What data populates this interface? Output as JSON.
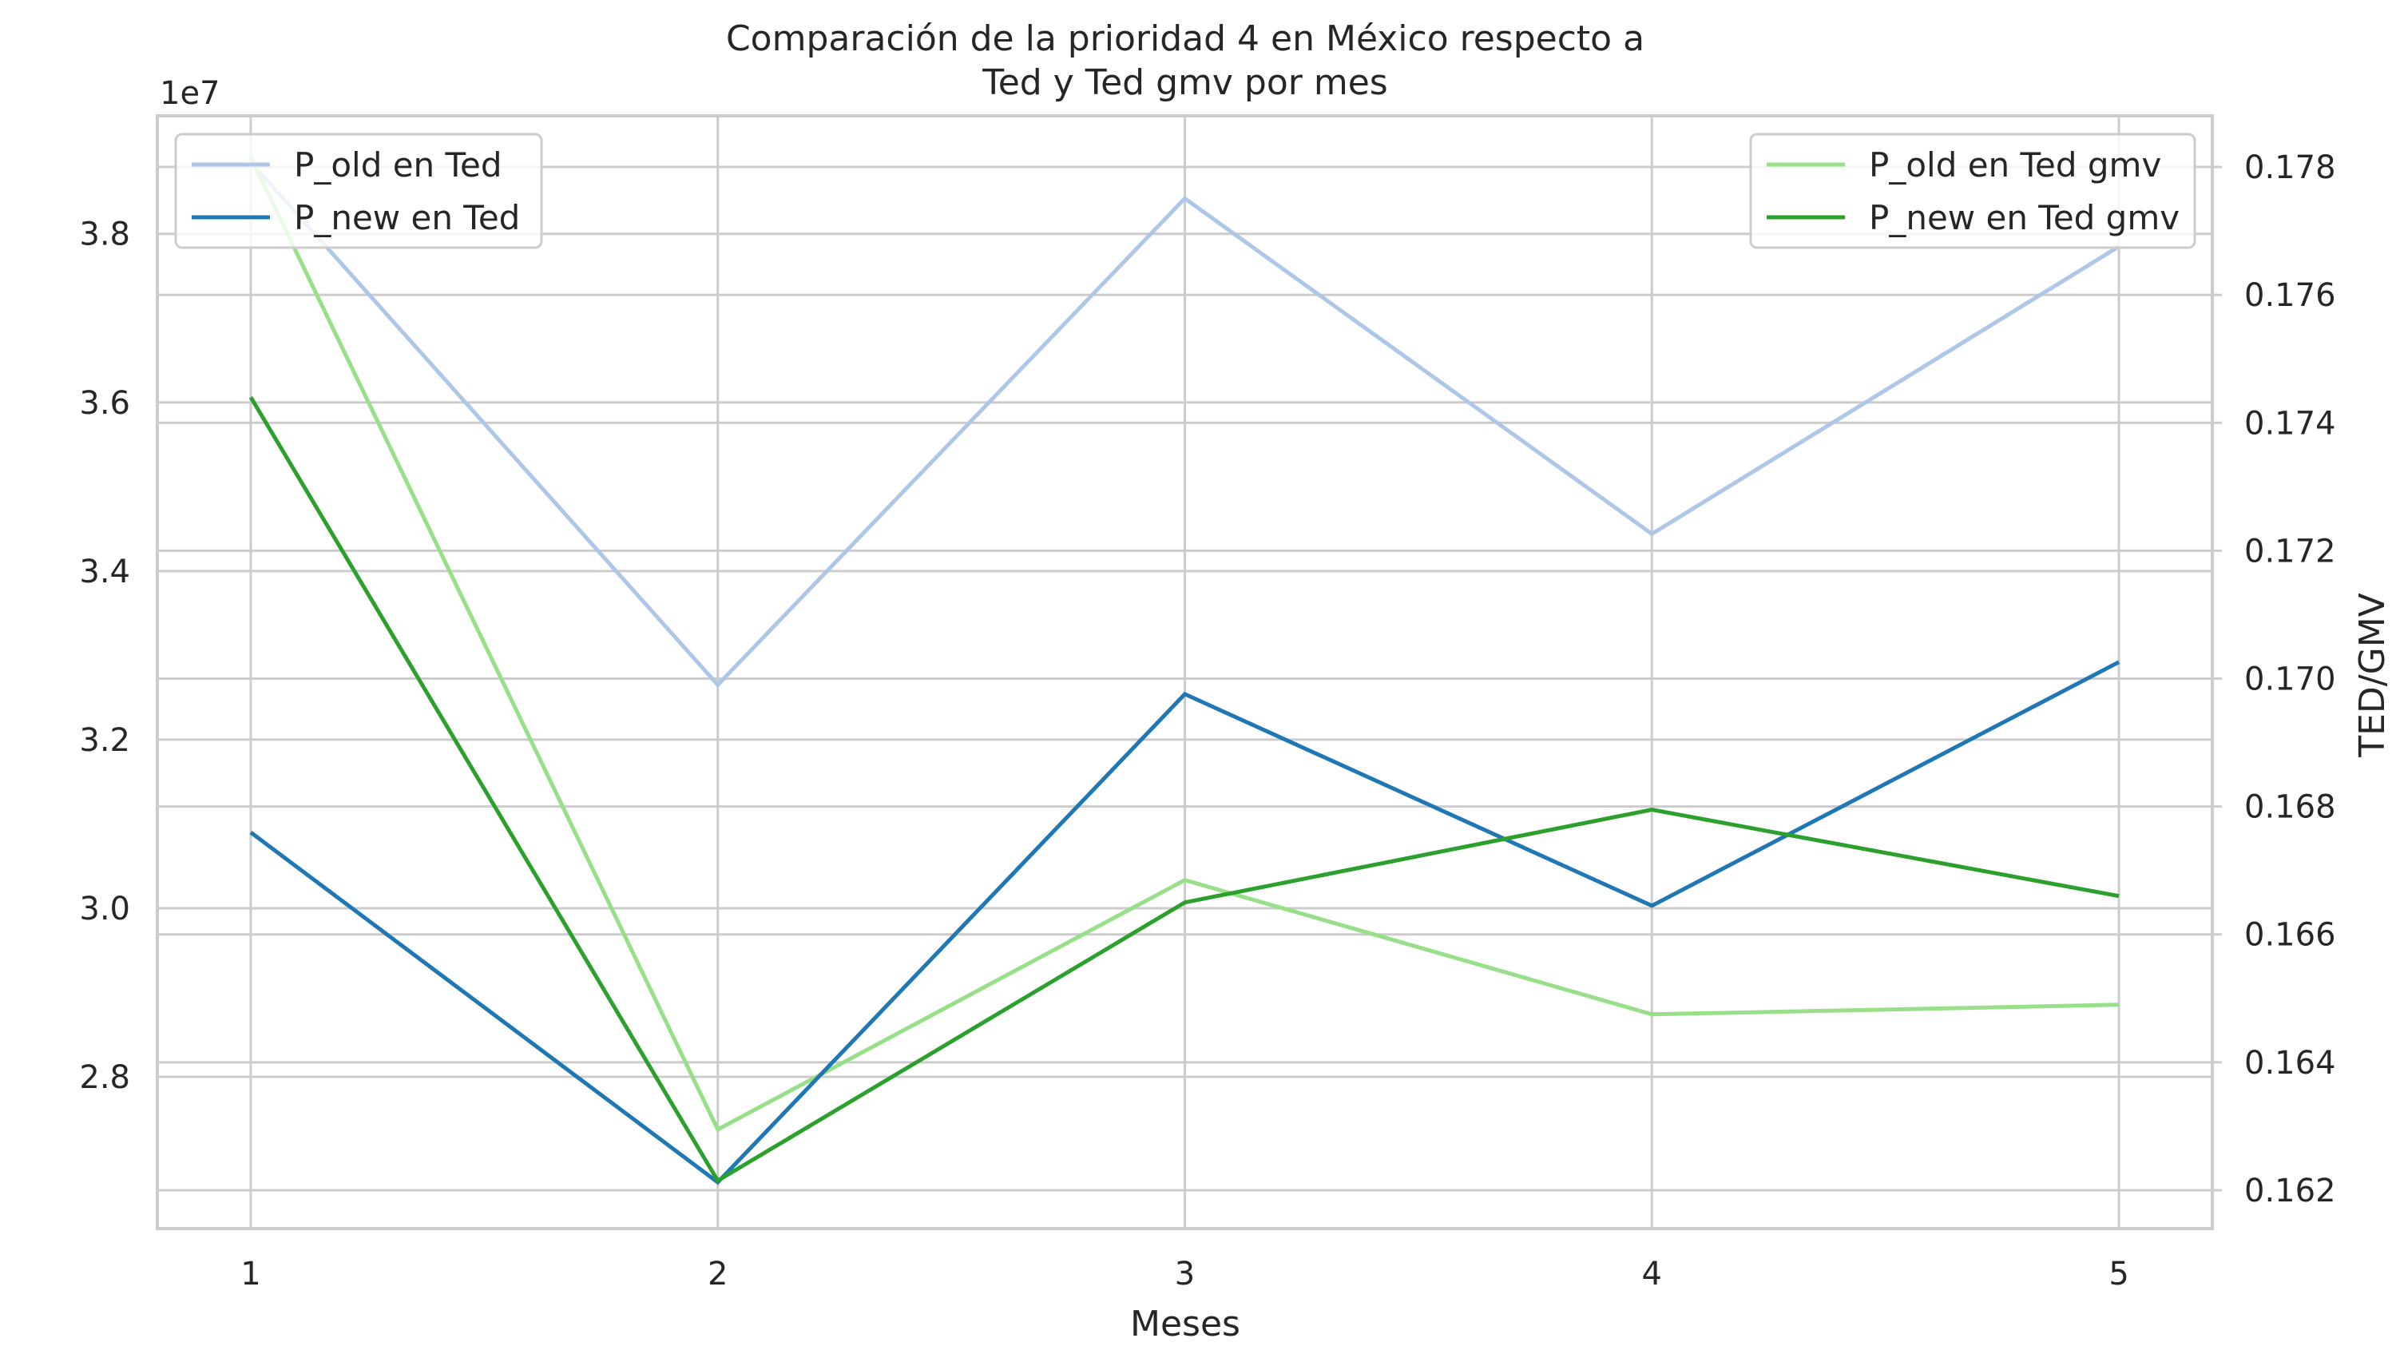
{
  "chart_data": {
    "type": "line",
    "title_line1": "Comparación de la prioridad 4 en México respecto a",
    "title_line2": "Ted y Ted gmv por mes",
    "xlabel": "Meses",
    "ylabel_left": "",
    "ylabel_right": "TED/GMV",
    "offset_label_left": "1e7",
    "x": [
      1,
      2,
      3,
      4,
      5
    ],
    "xlim": [
      0.8,
      5.2
    ],
    "ylim_left": [
      26200000,
      39400000
    ],
    "ylim_right": [
      0.1614,
      0.1788
    ],
    "yticks_left": [
      28000000,
      30000000,
      32000000,
      34000000,
      36000000,
      38000000
    ],
    "yticks_left_labels": [
      "2.8",
      "3.0",
      "3.2",
      "3.4",
      "3.6",
      "3.8"
    ],
    "yticks_right": [
      0.162,
      0.164,
      0.166,
      0.168,
      0.17,
      0.172,
      0.174,
      0.176,
      0.178
    ],
    "yticks_right_labels": [
      "0.162",
      "0.164",
      "0.166",
      "0.168",
      "0.170",
      "0.172",
      "0.174",
      "0.176",
      "0.178"
    ],
    "grid": true,
    "legend_left_placement": "upper-left",
    "legend_right_placement": "upper-right",
    "series": [
      {
        "name": "P_old en Ted",
        "axis": "left",
        "color": "#aec7e8",
        "values": [
          38850000,
          32650000,
          38420000,
          34440000,
          37850000
        ]
      },
      {
        "name": "P_new en Ted",
        "axis": "left",
        "color": "#1f77b4",
        "values": [
          30900000,
          26750000,
          32540000,
          30030000,
          32920000
        ]
      },
      {
        "name": "P_old en Ted gmv",
        "axis": "right",
        "color": "#98df8a",
        "values": [
          0.17815,
          0.16295,
          0.16685,
          0.16475,
          0.1649
        ]
      },
      {
        "name": "P_new en Ted gmv",
        "axis": "right",
        "color": "#2ca02c",
        "values": [
          0.1744,
          0.16215,
          0.1665,
          0.16795,
          0.1666
        ]
      }
    ]
  }
}
